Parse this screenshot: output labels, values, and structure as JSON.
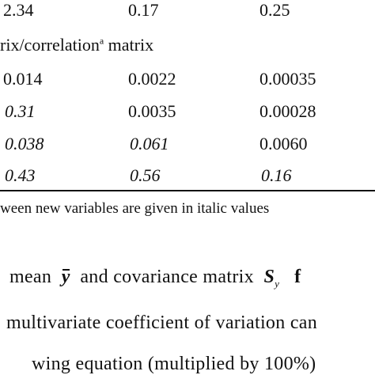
{
  "table": {
    "top_row": [
      "2.34",
      "0.17",
      "0.25"
    ],
    "section_label": "rix/correlation",
    "section_label_sup": "a",
    "section_label_tail": " matrix",
    "rows": [
      [
        "0.014",
        "0.0022",
        "0.00035"
      ],
      [
        "0.31",
        "0.0035",
        "0.00028"
      ],
      [
        "0.038",
        "0.061",
        "0.0060"
      ],
      [
        "0.43",
        "0.56",
        "0.16"
      ]
    ],
    "footnote": "ween new variables are given in italic values"
  },
  "text": {
    "line1_a": "mean",
    "line1_y": "y",
    "line1_b": "and covariance matrix",
    "line1_S": "S",
    "line1_S_sub": "y",
    "line1_end": "f",
    "line2": "multivariate coefficient of variation can",
    "line3": "wing equation (multiplied by 100%)"
  }
}
